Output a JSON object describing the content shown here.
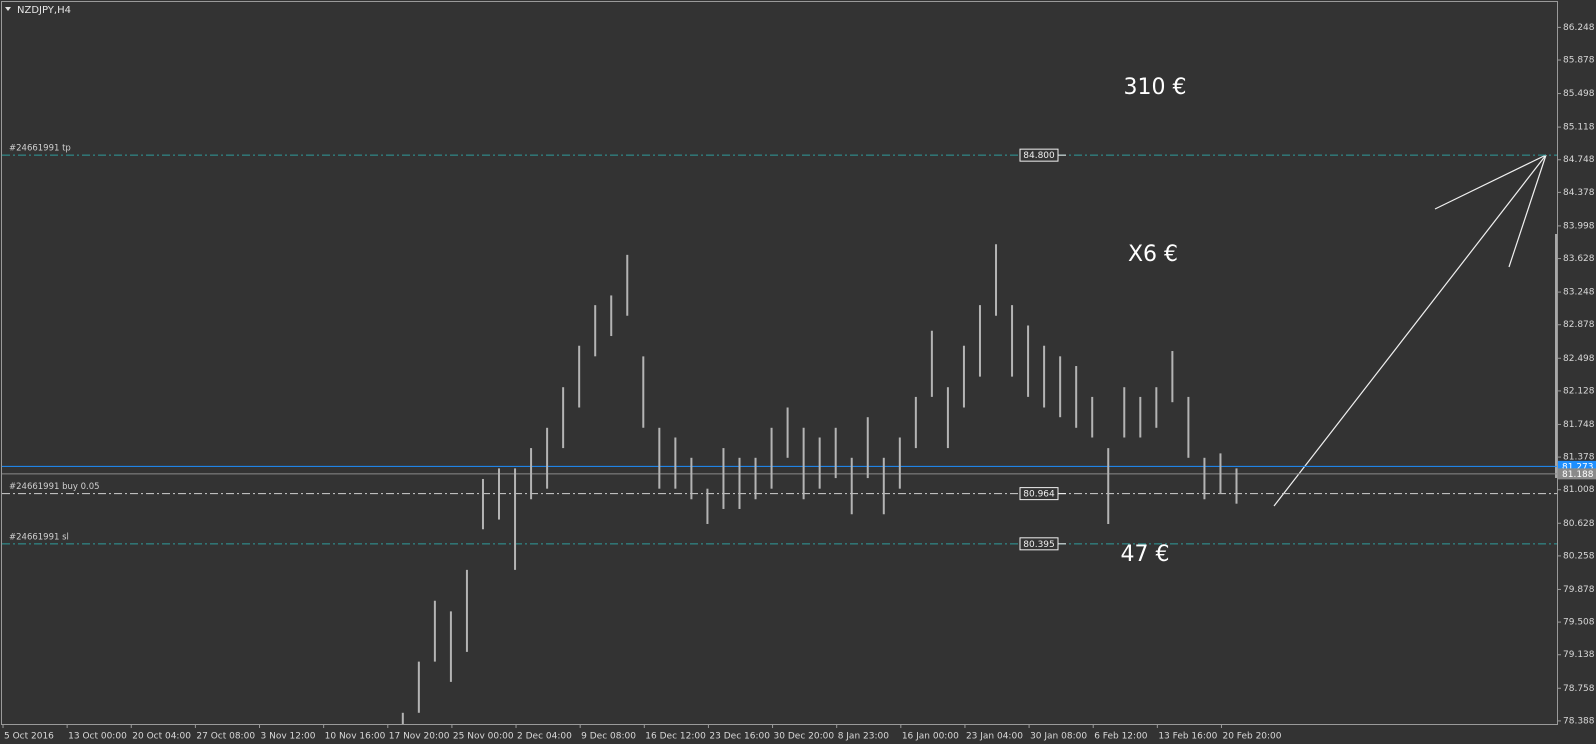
{
  "header": {
    "symbol": "NZDJPY,H4"
  },
  "chart_data": {
    "type": "range",
    "color": "#b4b4b4",
    "categories": [
      "5 Oct 2016",
      "13 Oct 00:00",
      "20 Oct 04:00",
      "27 Oct 08:00",
      "3 Nov 12:00",
      "10 Nov 16:00",
      "17 Nov 20:00",
      "25 Nov 00:00",
      "2 Dec 04:00",
      "9 Dec 08:00",
      "16 Dec 12:00",
      "23 Dec 16:00",
      "30 Dec 20:00",
      "8 Jan 23:00",
      "16 Jan 00:00",
      "23 Jan 04:00",
      "30 Jan 08:00",
      "6 Feb 12:00",
      "13 Feb 16:00",
      "20 Feb 20:00"
    ],
    "low": [
      null,
      null,
      null,
      null,
      null,
      null,
      null,
      null,
      null,
      null,
      null,
      null,
      null,
      null,
      null,
      null,
      null,
      null,
      null,
      null,
      null,
      null,
      null,
      null,
      null,
      78.3,
      78.48,
      79.06,
      78.83,
      79.17,
      80.56,
      80.67,
      80.1,
      80.9,
      81.02,
      81.48,
      81.94,
      82.52,
      82.75,
      82.98,
      81.71,
      81.02,
      81.02,
      80.9,
      80.62,
      80.79,
      80.79,
      80.9,
      81.02,
      81.37,
      80.9,
      81.02,
      81.14,
      80.73,
      81.14,
      80.73,
      81.02,
      81.48,
      82.06,
      81.48,
      81.94,
      82.29,
      82.98,
      82.29,
      82.06,
      81.94,
      81.83,
      81.71,
      81.6,
      80.62,
      81.6,
      81.6,
      81.71,
      82.0,
      81.37,
      80.9,
      80.96,
      80.85
    ],
    "high": [
      null,
      null,
      null,
      null,
      null,
      null,
      null,
      null,
      null,
      null,
      null,
      null,
      null,
      null,
      null,
      null,
      null,
      null,
      null,
      null,
      null,
      null,
      null,
      null,
      null,
      78.48,
      79.06,
      79.75,
      79.63,
      80.1,
      81.13,
      81.25,
      81.25,
      81.48,
      81.71,
      82.17,
      82.64,
      83.1,
      83.21,
      83.67,
      82.52,
      81.71,
      81.6,
      81.37,
      81.02,
      81.48,
      81.37,
      81.37,
      81.71,
      81.94,
      81.71,
      81.6,
      81.71,
      81.37,
      81.83,
      81.37,
      81.6,
      82.06,
      82.81,
      82.17,
      82.64,
      83.1,
      83.79,
      83.1,
      82.87,
      82.64,
      82.52,
      82.41,
      82.06,
      81.48,
      82.17,
      82.06,
      82.17,
      82.58,
      82.06,
      81.37,
      81.42,
      81.25
    ],
    "ylim": [
      78.353,
      86.513
    ],
    "yticks": [
      86.248,
      85.878,
      85.498,
      85.118,
      84.748,
      84.378,
      83.998,
      83.628,
      83.248,
      82.878,
      82.498,
      82.128,
      81.748,
      81.378,
      81.008,
      80.628,
      80.258,
      79.878,
      79.508,
      79.138,
      78.758,
      78.388
    ],
    "order_lines": [
      {
        "label": "#24661991 tp",
        "price": {
          "value": 84.8,
          "label": "84.800"
        },
        "color": "#2f9a9a"
      },
      {
        "label": "#24661991 buy 0.05",
        "price": 80.964,
        "color": "#d0d0d0"
      },
      {
        "label": "#24661991 sl",
        "price": 80.395,
        "color": "#2f9a9a"
      }
    ],
    "price_lines": [
      {
        "price": 81.273,
        "color": "#1e8fff"
      },
      {
        "price": 81.188,
        "color": "#8a8a8a"
      }
    ],
    "annotations": [
      "310 €",
      "X6 €",
      "47 €"
    ]
  }
}
